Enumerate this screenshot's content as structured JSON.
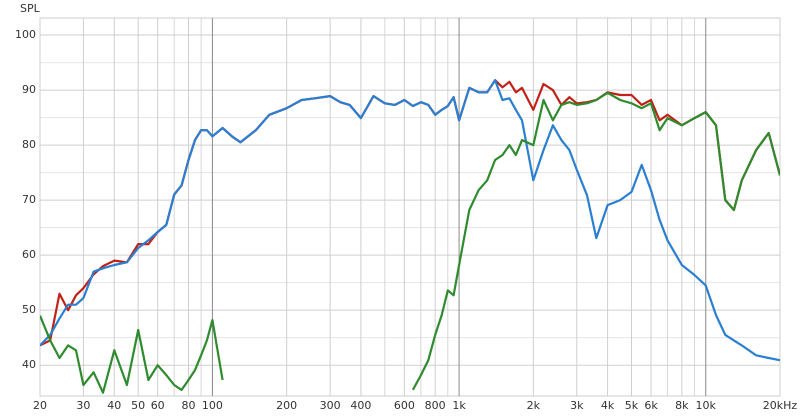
{
  "chart_data": {
    "type": "line",
    "y_label": "SPL",
    "x_scale": "log",
    "x": [
      20,
      22,
      24,
      26,
      28,
      30,
      33,
      36,
      40,
      45,
      50,
      55,
      60,
      65,
      70,
      75,
      80,
      85,
      90,
      95,
      100,
      110,
      120,
      130,
      150,
      170,
      200,
      230,
      260,
      300,
      330,
      360,
      400,
      450,
      500,
      550,
      600,
      650,
      700,
      750,
      800,
      850,
      900,
      950,
      1000,
      1100,
      1200,
      1300,
      1400,
      1500,
      1600,
      1700,
      1800,
      2000,
      2200,
      2400,
      2600,
      2800,
      3000,
      3300,
      3600,
      4000,
      4500,
      5000,
      5500,
      6000,
      6500,
      7000,
      8000,
      9000,
      10000,
      11000,
      12000,
      13000,
      14000,
      16000,
      18000,
      20000
    ],
    "series": [
      {
        "color": "#c0221a",
        "values": [
          43.6,
          44.5,
          53,
          50,
          52.7,
          54,
          56.5,
          58,
          59,
          58.7,
          62,
          62,
          64.2,
          65.5,
          71,
          72.7,
          77.3,
          80.9,
          82.7,
          82.7,
          81.6,
          83.1,
          81.6,
          80.5,
          82.7,
          85.5,
          86.7,
          88.2,
          88.5,
          88.9,
          87.8,
          87.3,
          84.9,
          88.9,
          87.6,
          87.3,
          88.2,
          87.1,
          87.8,
          87.3,
          85.5,
          86.4,
          87.1,
          88.7,
          84.5,
          90.4,
          89.6,
          89.6,
          91.8,
          90.5,
          91.5,
          89.6,
          90.4,
          86.4,
          91.1,
          90,
          87.3,
          88.7,
          87.6,
          87.8,
          88.2,
          89.6,
          89.1,
          89.1,
          87.3,
          88.2,
          84.5,
          85.5,
          83.6,
          84.9,
          86,
          83.6,
          70,
          68.2,
          73.6,
          79.1,
          82.2,
          74.5
        ]
      },
      {
        "color": "#2a7fd0",
        "values": [
          43.6,
          45.5,
          48.5,
          51,
          51,
          52.2,
          57,
          57.6,
          58.2,
          58.7,
          61.3,
          62.7,
          64.2,
          65.5,
          71,
          72.7,
          77.3,
          80.9,
          82.7,
          82.7,
          81.6,
          83.1,
          81.6,
          80.5,
          82.7,
          85.5,
          86.7,
          88.2,
          88.5,
          88.9,
          87.8,
          87.3,
          84.9,
          88.9,
          87.6,
          87.3,
          88.2,
          87.1,
          87.8,
          87.3,
          85.5,
          86.4,
          87.1,
          88.7,
          84.5,
          90.4,
          89.6,
          89.6,
          91.8,
          88.2,
          88.5,
          86.4,
          84.5,
          73.6,
          79.1,
          83.6,
          80.9,
          79.1,
          75.5,
          70.9,
          63.1,
          69.1,
          70,
          71.5,
          76.4,
          71.8,
          66.4,
          62.7,
          58.2,
          56.4,
          54.5,
          49.1,
          45.5,
          44.5,
          43.6,
          41.8,
          41.3,
          40.9
        ]
      },
      {
        "color": "#2e8b2e",
        "values": [
          49,
          44.5,
          41.3,
          43.6,
          42.7,
          36.4,
          38.7,
          35,
          42.7,
          36.4,
          46.4,
          37.3,
          40,
          38.2,
          36.4,
          35.5,
          37.3,
          39.1,
          41.8,
          44.5,
          48.2,
          37.3,
          null,
          null,
          null,
          null,
          null,
          null,
          null,
          null,
          null,
          null,
          null,
          null,
          null,
          null,
          null,
          35.5,
          38.2,
          40.9,
          45.5,
          49.1,
          53.6,
          52.7,
          58.2,
          68.2,
          71.8,
          73.6,
          77.3,
          78.2,
          80,
          78.2,
          80.9,
          80,
          88.2,
          84.5,
          87.3,
          87.8,
          87.3,
          87.6,
          88.2,
          89.5,
          88.2,
          87.6,
          86.7,
          87.6,
          82.7,
          84.9,
          83.6,
          84.9,
          86,
          83.6,
          70,
          68.2,
          73.6,
          79.1,
          82.2,
          74.5
        ]
      }
    ],
    "xlim": [
      20,
      20000
    ],
    "ylim": [
      34.4,
      103.1
    ],
    "xticks": [
      20,
      30,
      40,
      50,
      60,
      80,
      100,
      200,
      300,
      400,
      600,
      800,
      {
        "value": 1000,
        "label": "1k"
      },
      {
        "value": 2000,
        "label": "2k"
      },
      {
        "value": 3000,
        "label": "3k"
      },
      {
        "value": 4000,
        "label": "4k"
      },
      {
        "value": 5000,
        "label": "5k"
      },
      {
        "value": 6000,
        "label": "6k"
      },
      {
        "value": 8000,
        "label": "8k"
      },
      {
        "value": 10000,
        "label": "10k"
      },
      {
        "value": 20000,
        "label": "20kHz"
      }
    ],
    "x_minor_ticks": [
      70,
      90,
      500,
      700,
      900,
      7000,
      9000
    ],
    "yticks": [
      40,
      50,
      60,
      70,
      80,
      90,
      100
    ],
    "y_minor_ticks": [
      45,
      55,
      65,
      75,
      85,
      95
    ],
    "grid": true
  }
}
